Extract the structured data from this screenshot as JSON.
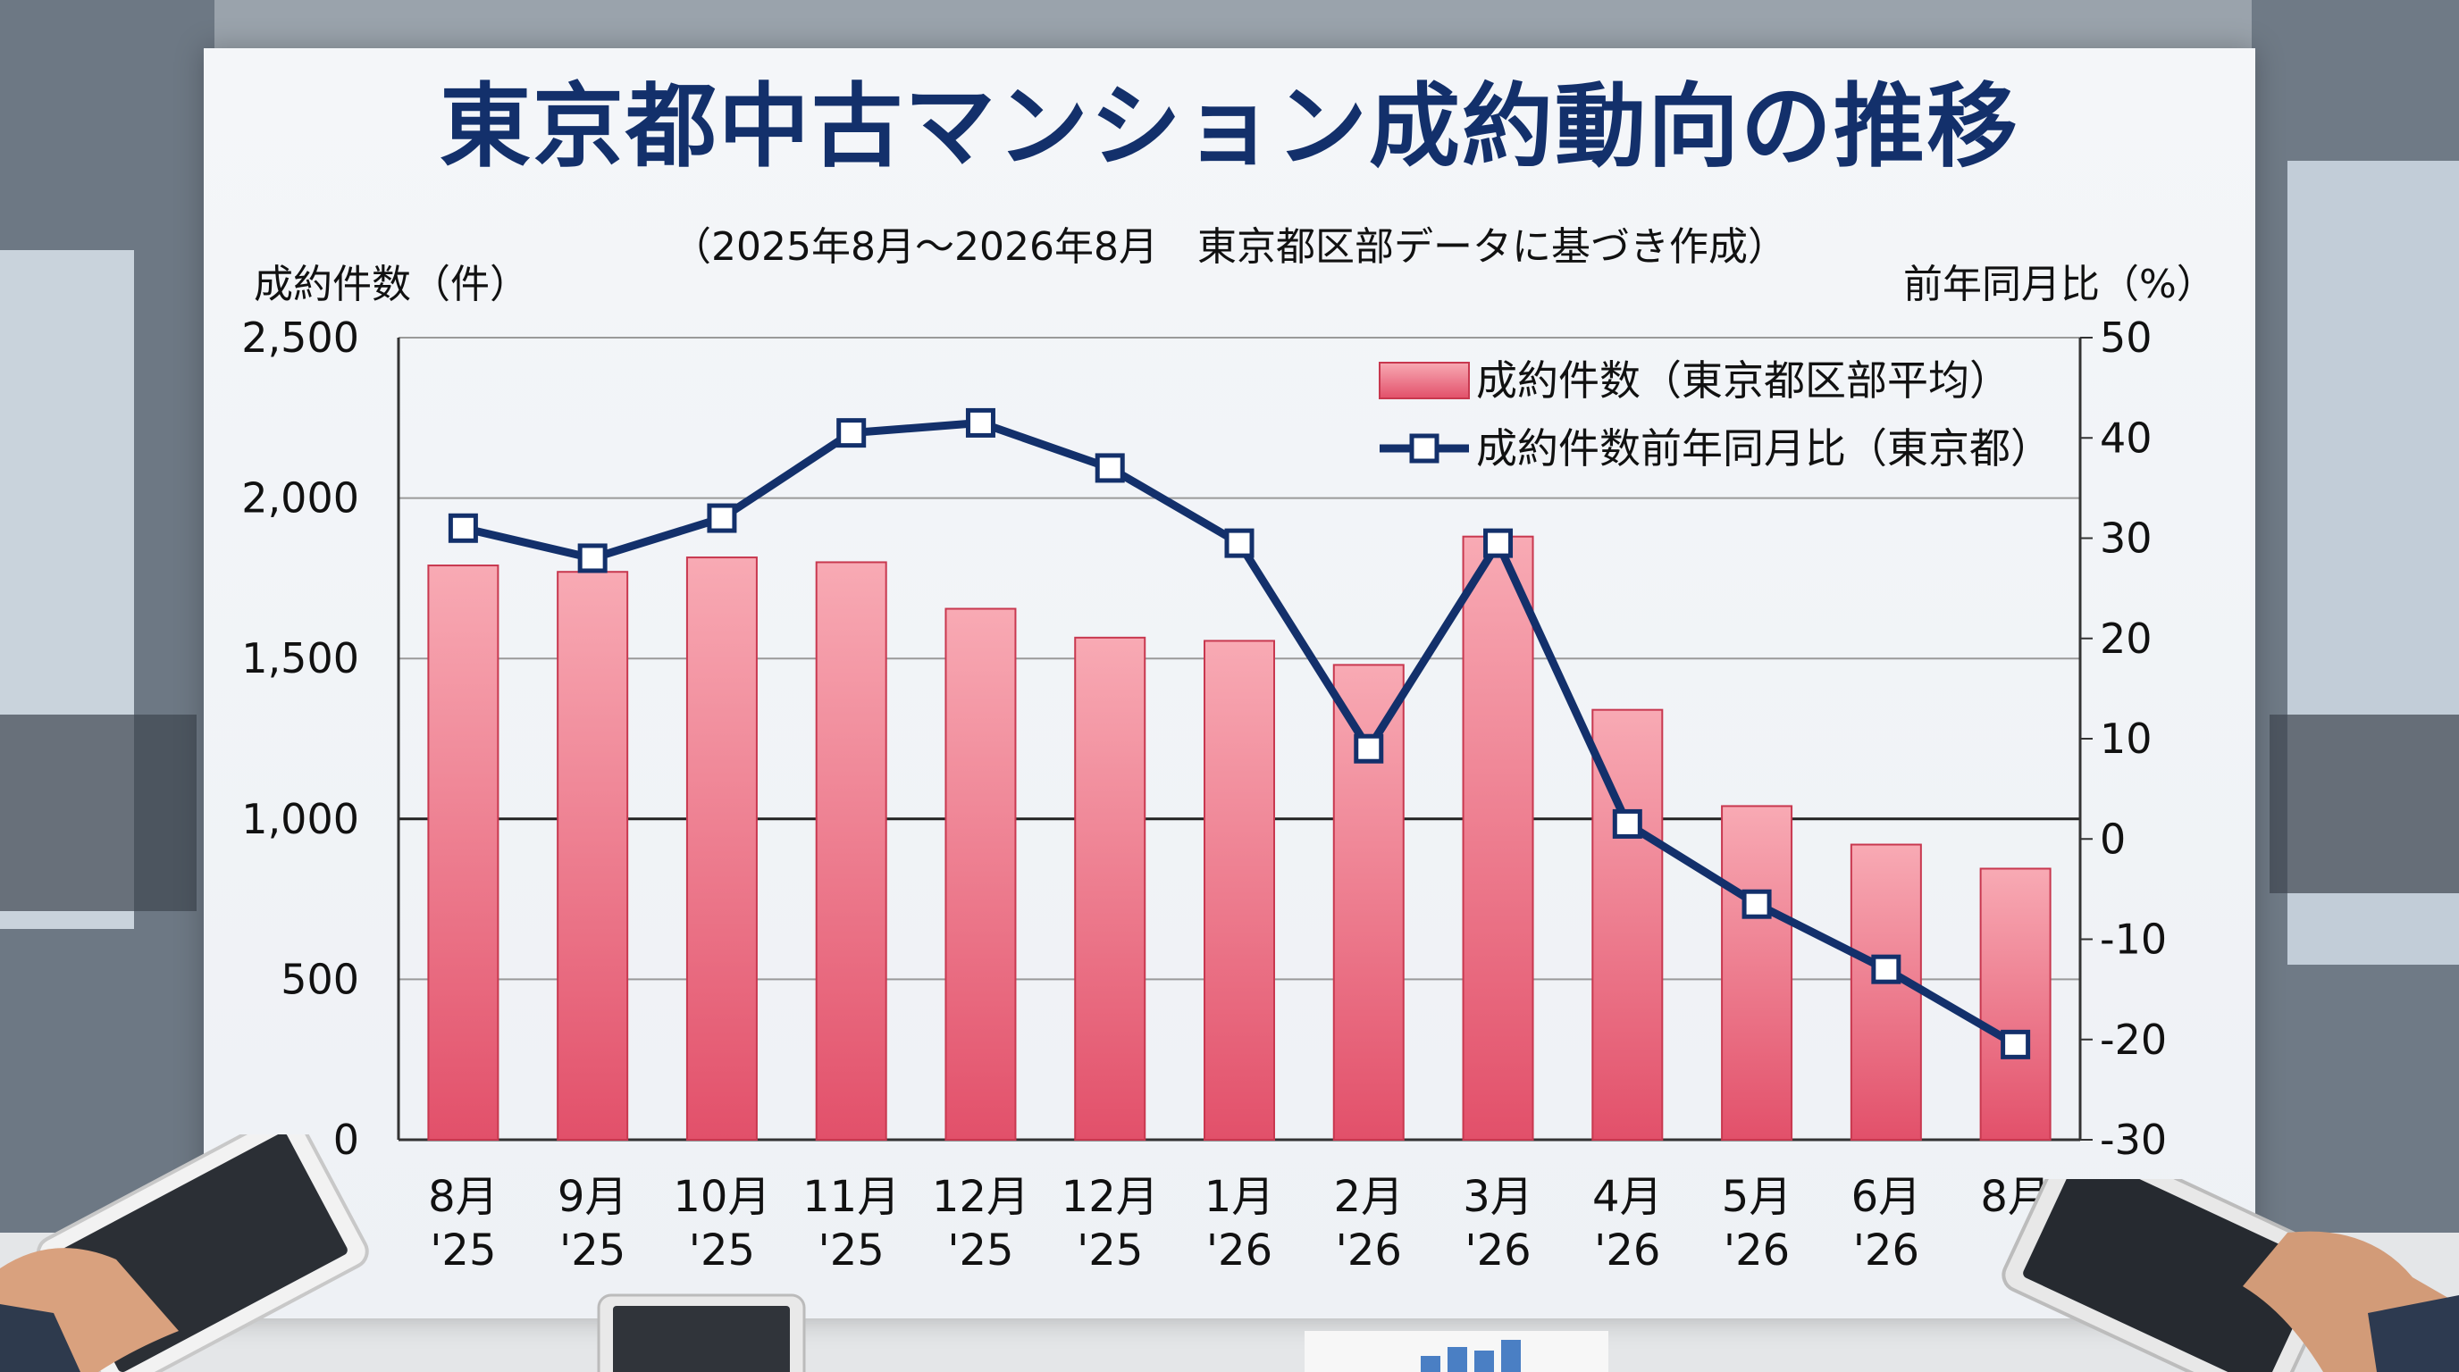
{
  "chart_data": {
    "type": "bar",
    "title": "東京都中古マンション成約動向の推移",
    "subtitle": "（2025年8月～2026年8月　東京都区部データに基づき作成）",
    "ylabel": "成約件数（件）",
    "y2label": "前年同月比（%）",
    "ylim": [
      0,
      2500
    ],
    "y2lim": [
      -30,
      50
    ],
    "yticks": [
      "2,500",
      "2,000",
      "1,500",
      "1,000",
      "500",
      "0"
    ],
    "y2ticks": [
      "50",
      "40",
      "30",
      "20",
      "10",
      "0",
      "-10",
      "-20",
      "-30"
    ],
    "categories": [
      {
        "month": "8月",
        "year": "'25"
      },
      {
        "month": "9月",
        "year": "'25"
      },
      {
        "month": "10月",
        "year": "'25"
      },
      {
        "month": "11月",
        "year": "'25"
      },
      {
        "month": "12月",
        "year": "'25"
      },
      {
        "month": "12月",
        "year": "'25"
      },
      {
        "month": "1月",
        "year": "'26"
      },
      {
        "month": "2月",
        "year": "'26"
      },
      {
        "month": "3月",
        "year": "'26"
      },
      {
        "month": "4月",
        "year": "'26"
      },
      {
        "month": "5月",
        "year": "'26"
      },
      {
        "month": "6月",
        "year": "'26"
      },
      {
        "month": "8月",
        "year": ""
      }
    ],
    "series": [
      {
        "name": "成約件数（東京都区部平均）",
        "type": "bar",
        "axis": "left",
        "color": "#e85a70",
        "values": [
          1790,
          1770,
          1815,
          1800,
          1655,
          1565,
          1555,
          1480,
          1880,
          1340,
          1040,
          920,
          845
        ]
      },
      {
        "name": "成約件数前年同月比（東京都）",
        "type": "line",
        "axis": "right",
        "color": "#13306b",
        "values": [
          31,
          28,
          32,
          40.5,
          41.5,
          37,
          29.5,
          9,
          29.5,
          1.5,
          -6.5,
          -13,
          -20.5
        ]
      }
    ],
    "grid": true,
    "legend": "top-right"
  }
}
